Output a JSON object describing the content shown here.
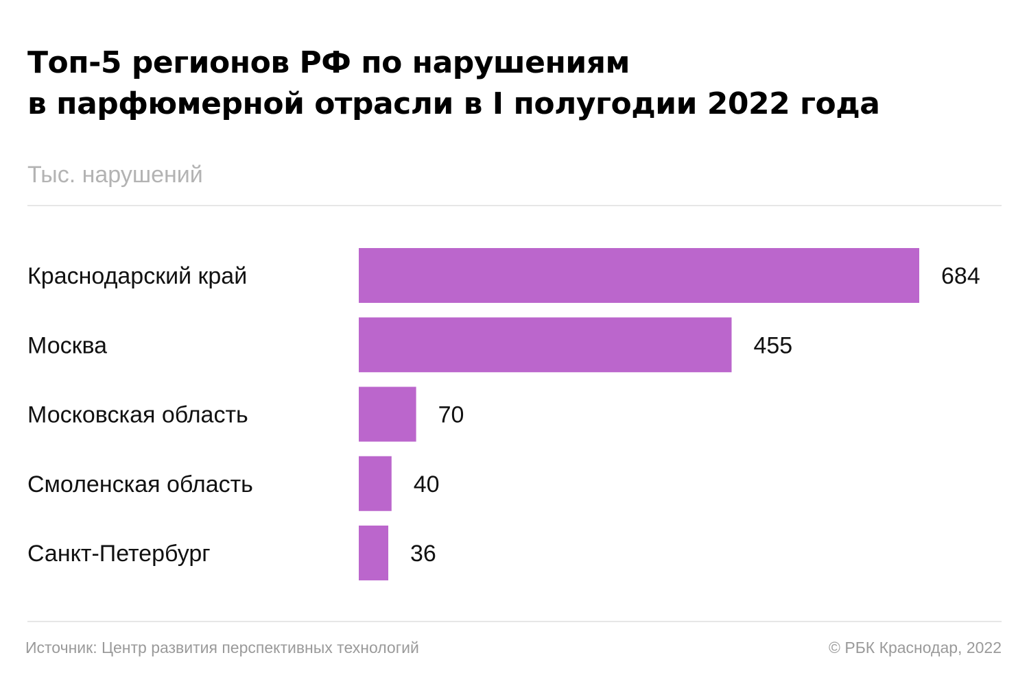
{
  "title_lines": [
    "Топ-5 регионов РФ по нарушениям",
    "в парфюмерной отрасли в I полугодии 2022 года"
  ],
  "subtitle": "Тыс. нарушений",
  "footer": {
    "source": "Источник: Центр развития перспективных технологий",
    "credit": "©  РБК Краснодар, 2022"
  },
  "colors": {
    "bar": "#bb66cc",
    "rule": "#e6e6e6"
  },
  "chart_data": {
    "type": "bar",
    "orientation": "horizontal",
    "title": "Топ-5 регионов РФ по нарушениям в парфюмерной отрасли в I полугодии 2022 года",
    "unit": "Тыс. нарушений",
    "categories": [
      "Краснодарский край",
      "Москва",
      "Московская область",
      "Смоленская область",
      "Санкт-Петербург"
    ],
    "values": [
      684,
      455,
      70,
      40,
      36
    ],
    "xlim": [
      0,
      684
    ],
    "grid": false,
    "legend": "none",
    "data_labels": true
  }
}
